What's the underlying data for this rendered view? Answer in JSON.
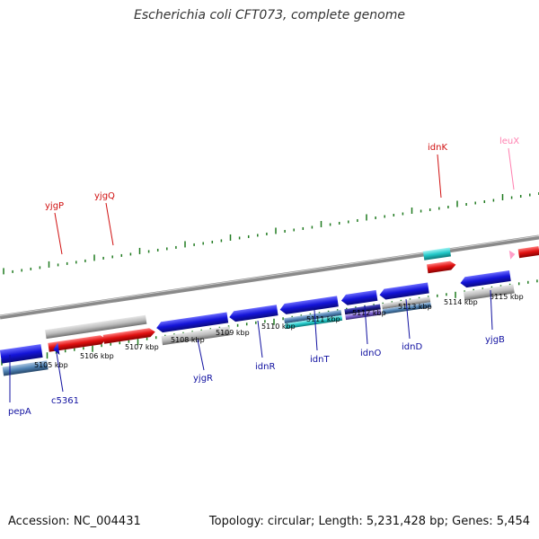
{
  "title": "Escherichia coli CFT073, complete genome",
  "accession": "Accession: NC_004431",
  "summary": "Topology: circular; Length: 5,231,428 bp; Genes: 5,454",
  "colors": {
    "backbone": "#8a8a8a",
    "tick": "#1f7a1f",
    "blue": "#1414d8",
    "red": "#e01010",
    "grey": "#bdbdbd",
    "cyan": "#22c8c8",
    "steel": "#4f82b4",
    "navy": "#1c1c8c",
    "purple": "#7b5fd0",
    "pink": "#ff9ec8",
    "label_blue": "#1010a0",
    "label_red": "#d01010",
    "label_pink": "#ff80b0"
  },
  "ticks": [
    "5105 kbp",
    "5106 kbp",
    "5107 kbp",
    "5108 kbp",
    "5109 kbp",
    "5110 kbp",
    "5111 kbp",
    "5112 kbp",
    "5113 kbp",
    "5114 kbp",
    "5115 kbp"
  ],
  "labels": {
    "pepA": "pepA",
    "c5361": "c5361",
    "yjgP": "yjgP",
    "yjgQ": "yjgQ",
    "yjgR": "yjgR",
    "idnR": "idnR",
    "idnT": "idnT",
    "idnO": "idnO",
    "idnD": "idnD",
    "idnK": "idnK",
    "leuX": "leuX",
    "yjgB": "yjgB"
  }
}
